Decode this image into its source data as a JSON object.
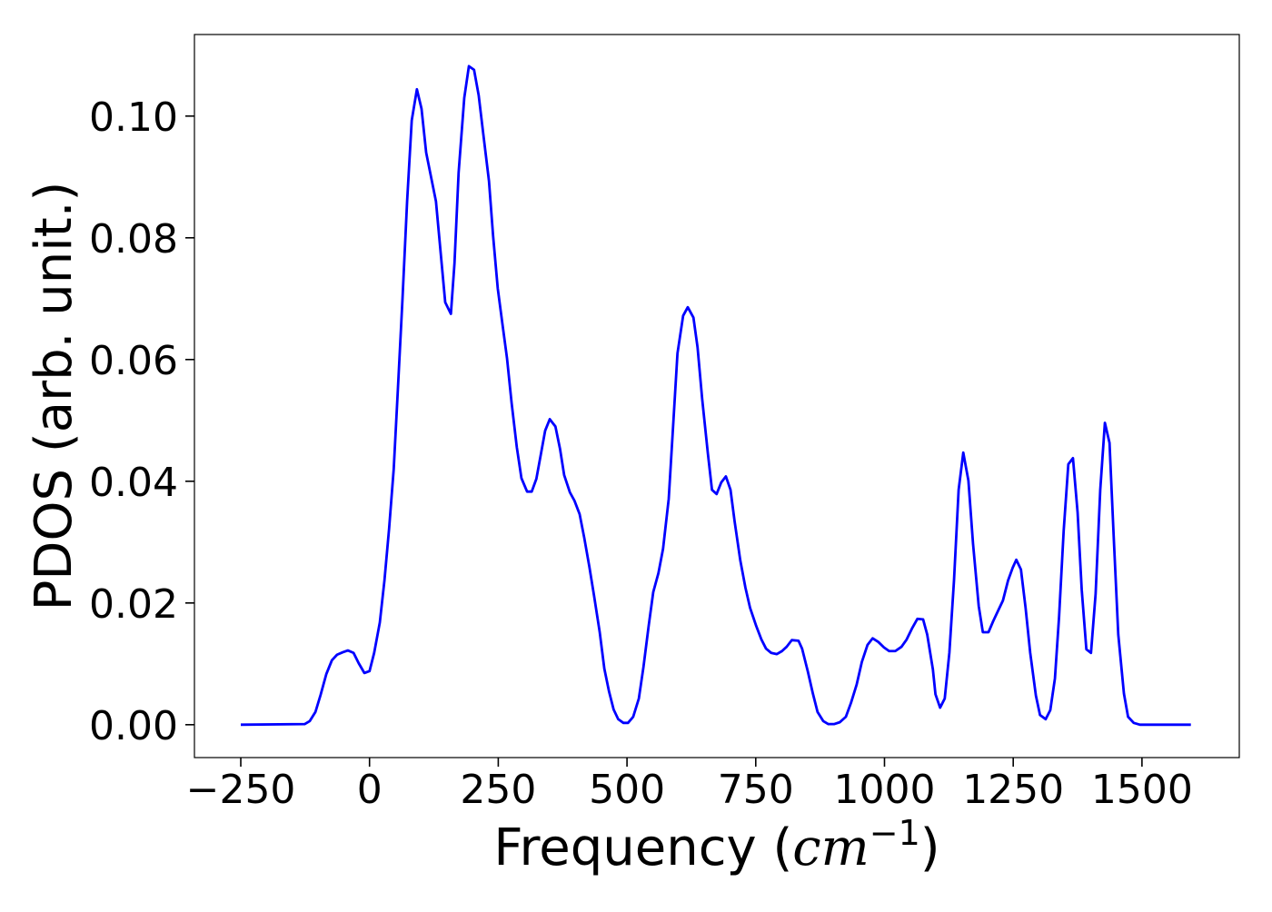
{
  "chart_data": {
    "type": "line",
    "xlabel": [
      "Frequency (",
      "cm",
      "−1",
      ")"
    ],
    "ylabel": "PDOS (arb. unit.)",
    "x": [
      -250,
      -126,
      -116,
      -105,
      -95,
      -84,
      -73,
      -63,
      -52,
      -42,
      -31,
      -21,
      -10,
      0,
      9,
      20,
      29,
      38,
      47,
      55,
      64,
      73,
      82,
      92,
      101,
      110,
      129,
      147,
      158,
      165,
      173,
      184,
      193,
      203,
      212,
      221,
      232,
      240,
      249,
      258,
      267,
      276,
      286,
      295,
      306,
      315,
      324,
      332,
      341,
      350,
      361,
      370,
      378,
      389,
      398,
      408,
      417,
      427,
      436,
      447,
      456,
      465,
      474,
      483,
      493,
      502,
      512,
      523,
      532,
      542,
      551,
      561,
      570,
      581,
      589,
      598,
      609,
      618,
      629,
      637,
      646,
      657,
      665,
      674,
      683,
      692,
      701,
      709,
      720,
      730,
      739,
      751,
      761,
      770,
      780,
      791,
      801,
      810,
      820,
      833,
      840,
      851,
      861,
      870,
      881,
      891,
      902,
      913,
      925,
      935,
      946,
      956,
      967,
      977,
      988,
      999,
      1009,
      1021,
      1033,
      1043,
      1054,
      1064,
      1075,
      1083,
      1094,
      1099,
      1108,
      1117,
      1126,
      1135,
      1144,
      1153,
      1163,
      1172,
      1183,
      1191,
      1202,
      1211,
      1221,
      1230,
      1240,
      1249,
      1256,
      1265,
      1274,
      1283,
      1294,
      1302,
      1313,
      1322,
      1331,
      1339,
      1348,
      1357,
      1366,
      1375,
      1383,
      1392,
      1401,
      1410,
      1419,
      1428,
      1437,
      1445,
      1454,
      1465,
      1473,
      1484,
      1496,
      1595
    ],
    "series": [
      {
        "name": "PDOS",
        "color": "#0000ff",
        "values": [
          0,
          0.0001,
          0.0006,
          0.0021,
          0.0049,
          0.0083,
          0.0106,
          0.0115,
          0.0119,
          0.0122,
          0.0118,
          0.0101,
          0.0085,
          0.0088,
          0.0118,
          0.0168,
          0.0237,
          0.0322,
          0.042,
          0.055,
          0.0699,
          0.086,
          0.0993,
          0.1044,
          0.1012,
          0.094,
          0.086,
          0.0694,
          0.0675,
          0.0758,
          0.0907,
          0.103,
          0.1082,
          0.1076,
          0.1034,
          0.097,
          0.0893,
          0.0803,
          0.0717,
          0.0659,
          0.0602,
          0.0528,
          0.0456,
          0.0405,
          0.0383,
          0.0383,
          0.0404,
          0.0441,
          0.0483,
          0.0502,
          0.049,
          0.0453,
          0.041,
          0.0382,
          0.0368,
          0.0346,
          0.0307,
          0.0259,
          0.0212,
          0.0152,
          0.0092,
          0.0055,
          0.0025,
          0.0009,
          0.0003,
          0.0003,
          0.0013,
          0.0043,
          0.0095,
          0.0162,
          0.0218,
          0.0249,
          0.0289,
          0.0371,
          0.0483,
          0.061,
          0.0672,
          0.0686,
          0.0669,
          0.062,
          0.0535,
          0.0446,
          0.0386,
          0.0379,
          0.0398,
          0.0408,
          0.0386,
          0.0334,
          0.027,
          0.0225,
          0.0192,
          0.0162,
          0.014,
          0.0125,
          0.0118,
          0.0116,
          0.0121,
          0.0128,
          0.0139,
          0.0138,
          0.0125,
          0.0088,
          0.0051,
          0.0021,
          0.0006,
          0.0001,
          0.0001,
          0.0004,
          0.0013,
          0.0036,
          0.0066,
          0.0103,
          0.0131,
          0.0142,
          0.0136,
          0.0127,
          0.0121,
          0.0121,
          0.0128,
          0.014,
          0.0159,
          0.0174,
          0.0173,
          0.0148,
          0.0091,
          0.005,
          0.0028,
          0.0043,
          0.0118,
          0.0237,
          0.0386,
          0.0447,
          0.0401,
          0.0297,
          0.0195,
          0.0152,
          0.0152,
          0.017,
          0.0188,
          0.0204,
          0.0237,
          0.0258,
          0.0271,
          0.0255,
          0.0192,
          0.0118,
          0.0048,
          0.0016,
          0.0009,
          0.0024,
          0.0076,
          0.0177,
          0.0319,
          0.0428,
          0.0438,
          0.0349,
          0.0222,
          0.0124,
          0.0118,
          0.0215,
          0.0386,
          0.0496,
          0.0463,
          0.0311,
          0.0148,
          0.0051,
          0.0013,
          0.0003,
          0,
          0
        ]
      }
    ],
    "xlim": [
      -340,
      1689
    ],
    "ylim": [
      -0.0054,
      0.1134
    ],
    "xticks": [
      {
        "value": -250,
        "label": "−250"
      },
      0,
      250,
      500,
      750,
      1000,
      1250,
      1500
    ],
    "yticks": [
      {
        "value": 0,
        "label": "0.00"
      },
      {
        "value": 0.02,
        "label": "0.02"
      },
      {
        "value": 0.04,
        "label": "0.04"
      },
      {
        "value": 0.06,
        "label": "0.06"
      },
      {
        "value": 0.08,
        "label": "0.08"
      },
      {
        "value": 0.1,
        "label": "0.10"
      }
    ],
    "grid": false
  }
}
